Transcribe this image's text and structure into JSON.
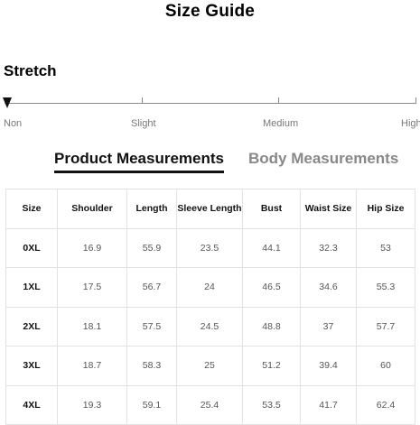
{
  "title": "Size Guide",
  "stretch": {
    "label": "Stretch",
    "level": "Non",
    "scale": [
      "Non",
      "Slight",
      "Medium",
      "High"
    ]
  },
  "tabs": [
    {
      "label": "Product Measurements",
      "active": true
    },
    {
      "label": "Body Measurements",
      "active": false
    }
  ],
  "table": {
    "headers": [
      "Size",
      "Shoulder",
      "Length",
      "Sleeve Length",
      "Bust",
      "Waist Size",
      "Hip Size"
    ],
    "rows": [
      [
        "0XL",
        "16.9",
        "55.9",
        "23.5",
        "44.1",
        "32.3",
        "53"
      ],
      [
        "1XL",
        "17.5",
        "56.7",
        "24",
        "46.5",
        "34.6",
        "55.3"
      ],
      [
        "2XL",
        "18.1",
        "57.5",
        "24.5",
        "48.8",
        "37",
        "57.7"
      ],
      [
        "3XL",
        "18.7",
        "58.3",
        "25",
        "51.2",
        "39.4",
        "60"
      ],
      [
        "4XL",
        "19.3",
        "59.1",
        "25.4",
        "53.5",
        "41.7",
        "62.4"
      ]
    ]
  }
}
